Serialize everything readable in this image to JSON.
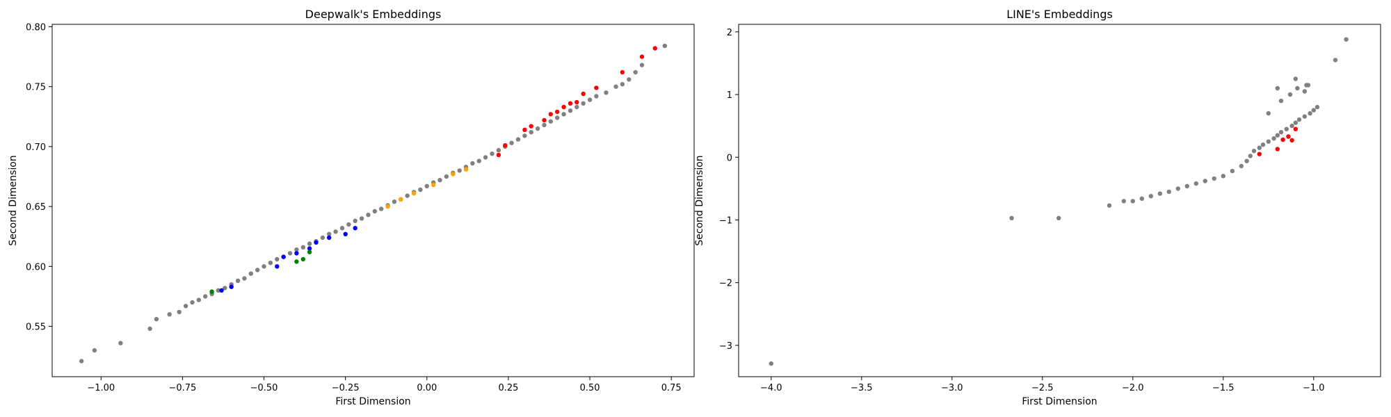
{
  "chart_data": [
    {
      "type": "scatter",
      "title": "Deepwalk's Embeddings",
      "xlabel": "First Dimension",
      "ylabel": "Second Dimension",
      "xlim": [
        -1.15,
        0.82
      ],
      "ylim": [
        0.508,
        0.802
      ],
      "xticks": [
        -1.0,
        -0.75,
        -0.5,
        -0.25,
        0.0,
        0.25,
        0.5,
        0.75
      ],
      "xtick_labels": [
        "−1.00",
        "−0.75",
        "−0.50",
        "−0.25",
        "0.00",
        "0.25",
        "0.50",
        "0.75"
      ],
      "yticks": [
        0.55,
        0.6,
        0.65,
        0.7,
        0.75,
        0.8
      ],
      "ytick_labels": [
        "0.55",
        "0.60",
        "0.65",
        "0.70",
        "0.75",
        "0.80"
      ],
      "grid": false,
      "series": [
        {
          "color": "#808080",
          "x": [
            -1.06,
            -1.02,
            -0.94,
            -0.85,
            -0.83,
            -0.79,
            -0.76,
            -0.74,
            -0.72,
            -0.7,
            -0.68,
            -0.66,
            -0.64,
            -0.62,
            -0.6,
            -0.58,
            -0.56,
            -0.54,
            -0.52,
            -0.5,
            -0.48,
            -0.46,
            -0.44,
            -0.42,
            -0.4,
            -0.38,
            -0.36,
            -0.34,
            -0.32,
            -0.3,
            -0.28,
            -0.26,
            -0.24,
            -0.22,
            -0.2,
            -0.18,
            -0.16,
            -0.14,
            -0.12,
            -0.1,
            -0.08,
            -0.06,
            -0.04,
            -0.02,
            0.0,
            0.02,
            0.04,
            0.06,
            0.08,
            0.1,
            0.12,
            0.14,
            0.16,
            0.18,
            0.2,
            0.22,
            0.24,
            0.26,
            0.28,
            0.3,
            0.32,
            0.34,
            0.36,
            0.38,
            0.4,
            0.42,
            0.44,
            0.46,
            0.48,
            0.5,
            0.52,
            0.55,
            0.58,
            0.6,
            0.62,
            0.64,
            0.66,
            0.73
          ],
          "y": [
            0.521,
            0.53,
            0.536,
            0.548,
            0.556,
            0.56,
            0.562,
            0.567,
            0.57,
            0.572,
            0.575,
            0.577,
            0.58,
            0.582,
            0.585,
            0.588,
            0.59,
            0.594,
            0.597,
            0.6,
            0.603,
            0.606,
            0.608,
            0.611,
            0.614,
            0.616,
            0.619,
            0.621,
            0.624,
            0.627,
            0.629,
            0.632,
            0.635,
            0.638,
            0.64,
            0.643,
            0.646,
            0.648,
            0.651,
            0.654,
            0.656,
            0.659,
            0.662,
            0.664,
            0.667,
            0.67,
            0.672,
            0.675,
            0.678,
            0.68,
            0.683,
            0.686,
            0.688,
            0.691,
            0.694,
            0.697,
            0.7,
            0.703,
            0.706,
            0.709,
            0.712,
            0.715,
            0.718,
            0.721,
            0.724,
            0.727,
            0.73,
            0.733,
            0.736,
            0.739,
            0.742,
            0.745,
            0.75,
            0.752,
            0.756,
            0.762,
            0.768,
            0.784
          ]
        },
        {
          "color": "#ff0000",
          "x": [
            0.22,
            0.24,
            0.3,
            0.32,
            0.36,
            0.38,
            0.4,
            0.42,
            0.44,
            0.46,
            0.48,
            0.52,
            0.6,
            0.66,
            0.7
          ],
          "y": [
            0.693,
            0.701,
            0.714,
            0.717,
            0.722,
            0.727,
            0.729,
            0.733,
            0.736,
            0.737,
            0.744,
            0.749,
            0.762,
            0.775,
            0.782
          ]
        },
        {
          "color": "#ffa500",
          "x": [
            -0.12,
            -0.08,
            -0.04,
            0.02,
            0.08,
            0.12
          ],
          "y": [
            0.65,
            0.656,
            0.661,
            0.668,
            0.677,
            0.681
          ]
        },
        {
          "color": "#0000ff",
          "x": [
            -0.63,
            -0.6,
            -0.46,
            -0.44,
            -0.4,
            -0.36,
            -0.34,
            -0.3,
            -0.25,
            -0.22
          ],
          "y": [
            0.58,
            0.583,
            0.6,
            0.608,
            0.611,
            0.615,
            0.62,
            0.624,
            0.627,
            0.632
          ]
        },
        {
          "color": "#008000",
          "x": [
            -0.66,
            -0.4,
            -0.38,
            -0.36
          ],
          "y": [
            0.579,
            0.604,
            0.606,
            0.612
          ]
        }
      ]
    },
    {
      "type": "scatter",
      "title": "LINE's Embeddings",
      "xlabel": "First Dimension",
      "ylabel": "Second Dimension",
      "xlim": [
        -4.18,
        -0.63
      ],
      "ylim": [
        -3.5,
        2.12
      ],
      "xticks": [
        -4.0,
        -3.5,
        -3.0,
        -2.5,
        -2.0,
        -1.5,
        -1.0
      ],
      "xtick_labels": [
        "−4.0",
        "−3.5",
        "−3.0",
        "−2.5",
        "−2.0",
        "−1.5",
        "−1.0"
      ],
      "yticks": [
        -3,
        -2,
        -1,
        0,
        1,
        2
      ],
      "ytick_labels": [
        "−3",
        "−2",
        "−1",
        "0",
        "1",
        "2"
      ],
      "grid": false,
      "series": [
        {
          "color": "#808080",
          "x": [
            -4.0,
            -2.67,
            -2.41,
            -2.13,
            -2.05,
            -2.0,
            -1.95,
            -1.9,
            -1.85,
            -1.8,
            -1.75,
            -1.7,
            -1.65,
            -1.6,
            -1.55,
            -1.5,
            -1.45,
            -1.4,
            -1.37,
            -1.35,
            -1.33,
            -1.3,
            -1.28,
            -1.25,
            -1.22,
            -1.2,
            -1.18,
            -1.15,
            -1.12,
            -1.1,
            -1.08,
            -1.05,
            -1.02,
            -1.0,
            -0.98,
            -1.25,
            -1.18,
            -1.13,
            -1.09,
            -1.05,
            -1.03,
            -1.2,
            -1.1,
            -1.04,
            -0.88,
            -0.82
          ],
          "y": [
            -3.29,
            -0.97,
            -0.97,
            -0.77,
            -0.7,
            -0.7,
            -0.66,
            -0.62,
            -0.58,
            -0.55,
            -0.5,
            -0.46,
            -0.42,
            -0.38,
            -0.34,
            -0.3,
            -0.22,
            -0.14,
            -0.06,
            0.02,
            0.1,
            0.15,
            0.2,
            0.25,
            0.3,
            0.35,
            0.4,
            0.45,
            0.5,
            0.55,
            0.6,
            0.65,
            0.7,
            0.75,
            0.8,
            0.7,
            0.9,
            1.0,
            1.1,
            1.05,
            1.15,
            1.1,
            1.25,
            1.15,
            1.55,
            1.88
          ]
        },
        {
          "color": "#ff0000",
          "x": [
            -1.3,
            -1.2,
            -1.17,
            -1.14,
            -1.12,
            -1.1
          ],
          "y": [
            0.05,
            0.13,
            0.28,
            0.33,
            0.27,
            0.45
          ]
        }
      ]
    }
  ]
}
